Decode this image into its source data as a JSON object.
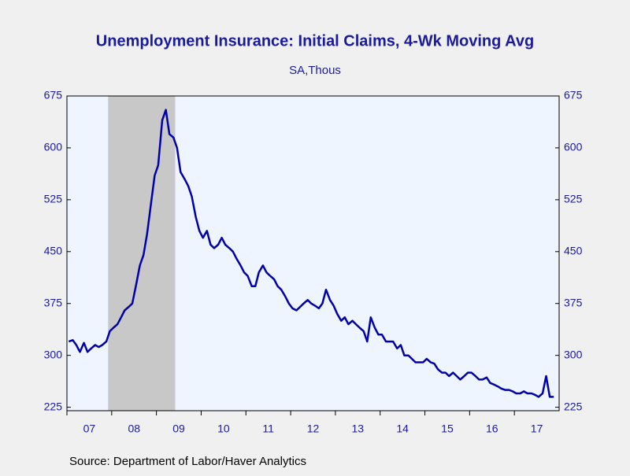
{
  "chart_data": {
    "type": "line",
    "title": "Unemployment Insurance: Initial Claims, 4-Wk Moving Avg",
    "subtitle": "SA,Thous",
    "source": "Source:  Department of Labor/Haver Analytics",
    "xlim": [
      2007.0,
      2018.0
    ],
    "xticks": [
      {
        "value": 2007,
        "label": "07"
      },
      {
        "value": 2008,
        "label": "08"
      },
      {
        "value": 2009,
        "label": "09"
      },
      {
        "value": 2010,
        "label": "10"
      },
      {
        "value": 2011,
        "label": "11"
      },
      {
        "value": 2012,
        "label": "12"
      },
      {
        "value": 2013,
        "label": "13"
      },
      {
        "value": 2014,
        "label": "14"
      },
      {
        "value": 2015,
        "label": "15"
      },
      {
        "value": 2016,
        "label": "16"
      },
      {
        "value": 2017,
        "label": "17"
      }
    ],
    "ylim": [
      220,
      675
    ],
    "yticks": [
      225,
      300,
      375,
      450,
      525,
      600,
      675
    ],
    "recessions": [
      [
        2007.92,
        2009.42
      ]
    ],
    "recession_color": "#c8c8c8",
    "x": [
      2007.04,
      2007.13,
      2007.21,
      2007.29,
      2007.38,
      2007.46,
      2007.54,
      2007.63,
      2007.71,
      2007.79,
      2007.88,
      2007.96,
      2008.04,
      2008.13,
      2008.21,
      2008.29,
      2008.38,
      2008.46,
      2008.54,
      2008.63,
      2008.71,
      2008.79,
      2008.88,
      2008.96,
      2009.04,
      2009.13,
      2009.21,
      2009.29,
      2009.38,
      2009.46,
      2009.54,
      2009.63,
      2009.71,
      2009.79,
      2009.88,
      2009.96,
      2010.04,
      2010.13,
      2010.21,
      2010.29,
      2010.38,
      2010.46,
      2010.54,
      2010.63,
      2010.71,
      2010.79,
      2010.88,
      2010.96,
      2011.04,
      2011.13,
      2011.21,
      2011.29,
      2011.38,
      2011.46,
      2011.54,
      2011.63,
      2011.71,
      2011.79,
      2011.88,
      2011.96,
      2012.04,
      2012.13,
      2012.21,
      2012.29,
      2012.38,
      2012.46,
      2012.54,
      2012.63,
      2012.71,
      2012.79,
      2012.88,
      2012.96,
      2013.04,
      2013.13,
      2013.21,
      2013.29,
      2013.38,
      2013.46,
      2013.54,
      2013.63,
      2013.71,
      2013.79,
      2013.88,
      2013.96,
      2014.04,
      2014.13,
      2014.21,
      2014.29,
      2014.38,
      2014.46,
      2014.54,
      2014.63,
      2014.71,
      2014.79,
      2014.88,
      2014.96,
      2015.04,
      2015.13,
      2015.21,
      2015.29,
      2015.38,
      2015.46,
      2015.54,
      2015.63,
      2015.71,
      2015.79,
      2015.88,
      2015.96,
      2016.04,
      2016.13,
      2016.21,
      2016.29,
      2016.38,
      2016.46,
      2016.54,
      2016.63,
      2016.71,
      2016.79,
      2016.88,
      2016.96,
      2017.04,
      2017.13,
      2017.21,
      2017.29,
      2017.38,
      2017.46,
      2017.54,
      2017.63,
      2017.71,
      2017.79,
      2017.88
    ],
    "series": [
      {
        "color": "#0000aa",
        "values": [
          320,
          322,
          315,
          305,
          318,
          305,
          310,
          315,
          312,
          315,
          320,
          335,
          340,
          345,
          355,
          365,
          370,
          375,
          400,
          430,
          445,
          475,
          520,
          560,
          575,
          640,
          655,
          620,
          615,
          600,
          565,
          555,
          545,
          530,
          500,
          480,
          470,
          480,
          460,
          455,
          460,
          470,
          460,
          455,
          450,
          440,
          430,
          420,
          415,
          400,
          400,
          420,
          430,
          420,
          415,
          410,
          400,
          395,
          385,
          375,
          368,
          365,
          370,
          375,
          380,
          375,
          372,
          368,
          375,
          395,
          380,
          372,
          360,
          350,
          355,
          345,
          350,
          345,
          340,
          335,
          320,
          355,
          340,
          330,
          330,
          320,
          320,
          320,
          310,
          315,
          300,
          300,
          295,
          290,
          290,
          290,
          295,
          290,
          288,
          280,
          275,
          275,
          270,
          275,
          270,
          265,
          270,
          275,
          275,
          270,
          265,
          265,
          268,
          260,
          258,
          255,
          252,
          250,
          250,
          248,
          245,
          245,
          248,
          245,
          245,
          243,
          240,
          245,
          270,
          240,
          240
        ]
      }
    ]
  }
}
